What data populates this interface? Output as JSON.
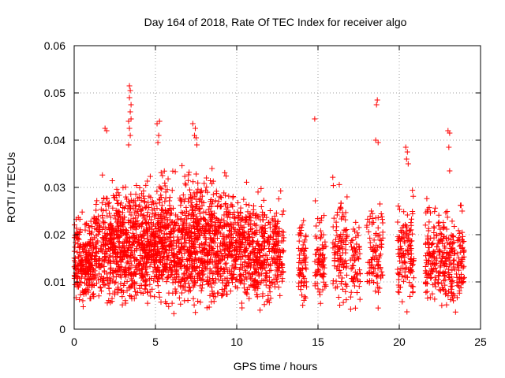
{
  "chart_data": {
    "type": "scatter",
    "title": "Day 164 of 2018, Rate Of TEC Index for receiver algo",
    "xlabel": "GPS time / hours",
    "ylabel": "ROTI / TECUs",
    "xlim": [
      0,
      25
    ],
    "ylim": [
      0,
      0.06
    ],
    "x_ticks": [
      0,
      5,
      10,
      15,
      20,
      25
    ],
    "x_tick_labels": [
      "0",
      "5",
      "10",
      "15",
      "20",
      "25"
    ],
    "y_ticks": [
      0,
      0.01,
      0.02,
      0.03,
      0.04,
      0.05,
      0.06
    ],
    "y_tick_labels": [
      "0",
      "0.01",
      "0.02",
      "0.03",
      "0.04",
      "0.05",
      "0.06"
    ],
    "grid": true,
    "marker": "plus",
    "color": "#ff0000",
    "clusters": [
      {
        "x_range": [
          0.0,
          1.2
        ],
        "y_range": [
          0.003,
          0.026
        ],
        "count": 240
      },
      {
        "x_range": [
          1.2,
          2.6
        ],
        "y_range": [
          0.003,
          0.033
        ],
        "count": 260
      },
      {
        "x_range": [
          2.6,
          4.0
        ],
        "y_range": [
          0.003,
          0.034
        ],
        "count": 300
      },
      {
        "x_range": [
          4.0,
          5.2
        ],
        "y_range": [
          0.003,
          0.034
        ],
        "count": 280
      },
      {
        "x_range": [
          5.2,
          6.6
        ],
        "y_range": [
          0.002,
          0.036
        ],
        "count": 300
      },
      {
        "x_range": [
          6.6,
          8.0
        ],
        "y_range": [
          0.002,
          0.037
        ],
        "count": 320
      },
      {
        "x_range": [
          8.0,
          9.4
        ],
        "y_range": [
          0.002,
          0.035
        ],
        "count": 280
      },
      {
        "x_range": [
          9.4,
          10.8
        ],
        "y_range": [
          0.003,
          0.033
        ],
        "count": 260
      },
      {
        "x_range": [
          10.8,
          12.2
        ],
        "y_range": [
          0.002,
          0.031
        ],
        "count": 240
      },
      {
        "x_range": [
          12.2,
          12.9
        ],
        "y_range": [
          0.004,
          0.03
        ],
        "count": 110
      },
      {
        "x_range": [
          13.8,
          14.3
        ],
        "y_range": [
          0.004,
          0.026
        ],
        "count": 70
      },
      {
        "x_range": [
          14.8,
          15.5
        ],
        "y_range": [
          0.003,
          0.028
        ],
        "count": 80
      },
      {
        "x_range": [
          15.9,
          16.8
        ],
        "y_range": [
          0.003,
          0.033
        ],
        "count": 110
      },
      {
        "x_range": [
          17.0,
          17.6
        ],
        "y_range": [
          0.003,
          0.025
        ],
        "count": 60
      },
      {
        "x_range": [
          18.0,
          19.0
        ],
        "y_range": [
          0.004,
          0.029
        ],
        "count": 100
      },
      {
        "x_range": [
          19.9,
          20.9
        ],
        "y_range": [
          0.003,
          0.03
        ],
        "count": 130
      },
      {
        "x_range": [
          21.6,
          22.6
        ],
        "y_range": [
          0.003,
          0.029
        ],
        "count": 130
      },
      {
        "x_range": [
          22.6,
          24.0
        ],
        "y_range": [
          0.002,
          0.028
        ],
        "count": 180
      }
    ],
    "outliers": [
      {
        "x": 1.9,
        "y": 0.0425
      },
      {
        "x": 2.0,
        "y": 0.042
      },
      {
        "x": 3.4,
        "y": 0.0515
      },
      {
        "x": 3.45,
        "y": 0.0505
      },
      {
        "x": 3.4,
        "y": 0.049
      },
      {
        "x": 3.5,
        "y": 0.0475
      },
      {
        "x": 3.45,
        "y": 0.046
      },
      {
        "x": 3.5,
        "y": 0.0445
      },
      {
        "x": 3.35,
        "y": 0.044
      },
      {
        "x": 3.4,
        "y": 0.0425
      },
      {
        "x": 3.45,
        "y": 0.041
      },
      {
        "x": 3.35,
        "y": 0.039
      },
      {
        "x": 5.1,
        "y": 0.0435
      },
      {
        "x": 5.25,
        "y": 0.044
      },
      {
        "x": 5.2,
        "y": 0.041
      },
      {
        "x": 5.15,
        "y": 0.0395
      },
      {
        "x": 7.3,
        "y": 0.0435
      },
      {
        "x": 7.45,
        "y": 0.0425
      },
      {
        "x": 7.4,
        "y": 0.041
      },
      {
        "x": 7.5,
        "y": 0.0405
      },
      {
        "x": 7.55,
        "y": 0.039
      },
      {
        "x": 14.8,
        "y": 0.0445
      },
      {
        "x": 18.65,
        "y": 0.0485
      },
      {
        "x": 18.6,
        "y": 0.0475
      },
      {
        "x": 18.55,
        "y": 0.04
      },
      {
        "x": 18.7,
        "y": 0.0395
      },
      {
        "x": 20.4,
        "y": 0.0385
      },
      {
        "x": 20.5,
        "y": 0.0375
      },
      {
        "x": 20.45,
        "y": 0.036
      },
      {
        "x": 20.55,
        "y": 0.035
      },
      {
        "x": 23.0,
        "y": 0.042
      },
      {
        "x": 23.1,
        "y": 0.0415
      },
      {
        "x": 23.05,
        "y": 0.0385
      },
      {
        "x": 23.1,
        "y": 0.0335
      }
    ]
  }
}
